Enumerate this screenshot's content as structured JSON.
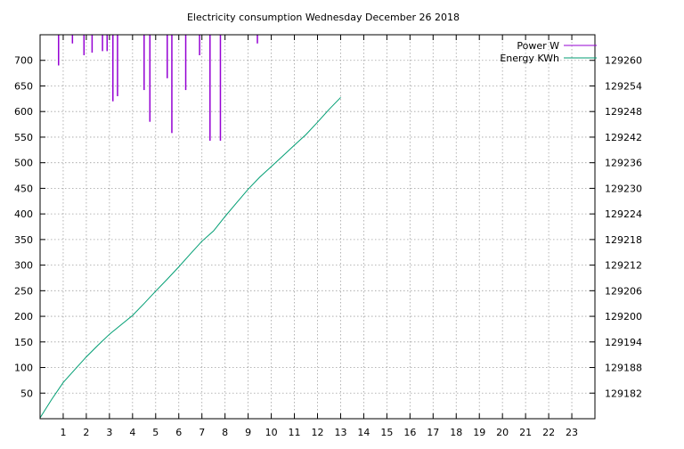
{
  "chart_data": {
    "type": "line",
    "title": "Electricity consumption Wednesday December 26 2018",
    "xlim": [
      0,
      24
    ],
    "x_ticks": [
      1,
      2,
      3,
      4,
      5,
      6,
      7,
      8,
      9,
      10,
      11,
      12,
      13,
      14,
      15,
      16,
      17,
      18,
      19,
      20,
      21,
      22,
      23
    ],
    "y_left": {
      "lim": [
        0,
        750
      ],
      "ticks": [
        50,
        100,
        150,
        200,
        250,
        300,
        350,
        400,
        450,
        500,
        550,
        600,
        650,
        700
      ]
    },
    "y_right": {
      "lim": [
        129176,
        129266
      ],
      "ticks": [
        129182,
        129188,
        129194,
        129200,
        129206,
        129212,
        129218,
        129224,
        129230,
        129236,
        129242,
        129248,
        129254,
        129260
      ]
    },
    "grid": true,
    "legend_position": "top-right",
    "series": [
      {
        "name": "Power W",
        "axis": "left",
        "color": "#9400d3",
        "style": "impulses-from-top",
        "points": [
          [
            0.8,
            690
          ],
          [
            1.4,
            733
          ],
          [
            1.9,
            710
          ],
          [
            2.25,
            715
          ],
          [
            2.7,
            718
          ],
          [
            2.9,
            718
          ],
          [
            3.15,
            620
          ],
          [
            3.35,
            630
          ],
          [
            4.5,
            642
          ],
          [
            4.75,
            580
          ],
          [
            5.5,
            665
          ],
          [
            5.7,
            558
          ],
          [
            6.3,
            642
          ],
          [
            6.9,
            710
          ],
          [
            7.35,
            543
          ],
          [
            7.8,
            543
          ],
          [
            9.4,
            733
          ]
        ]
      },
      {
        "name": "Energy KWh",
        "axis": "right",
        "color": "#009e73",
        "style": "line",
        "points": [
          [
            0.0,
            129176.2
          ],
          [
            0.5,
            129180.5
          ],
          [
            1.0,
            129184.5
          ],
          [
            1.5,
            129187.5
          ],
          [
            2.0,
            129190.5
          ],
          [
            2.5,
            129193.2
          ],
          [
            3.0,
            129195.8
          ],
          [
            3.5,
            129198.0
          ],
          [
            4.0,
            129200.2
          ],
          [
            4.5,
            129203.0
          ],
          [
            5.0,
            129205.9
          ],
          [
            5.5,
            129208.7
          ],
          [
            6.0,
            129211.6
          ],
          [
            6.5,
            129214.6
          ],
          [
            7.0,
            129217.6
          ],
          [
            7.5,
            129220.0
          ],
          [
            8.0,
            129223.4
          ],
          [
            8.5,
            129226.6
          ],
          [
            9.0,
            129229.8
          ],
          [
            9.5,
            129232.6
          ],
          [
            10.0,
            129235.1
          ],
          [
            10.5,
            129237.6
          ],
          [
            11.0,
            129240.1
          ],
          [
            11.5,
            129242.6
          ],
          [
            12.0,
            129245.5
          ],
          [
            12.5,
            129248.5
          ],
          [
            13.0,
            129251.3
          ]
        ]
      }
    ]
  }
}
